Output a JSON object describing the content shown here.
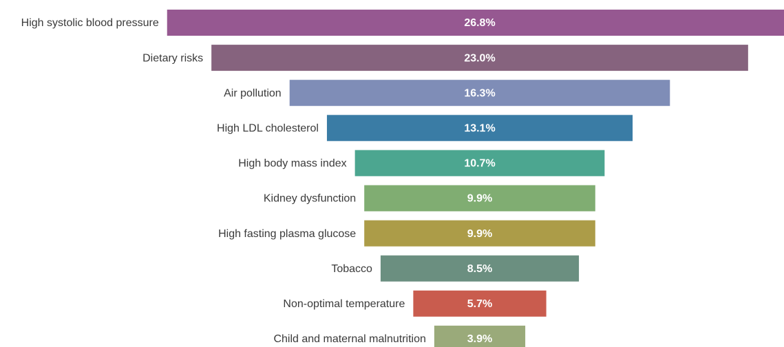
{
  "chart_data": {
    "type": "funnel-bar",
    "categories": [
      "High systolic blood pressure",
      "Dietary risks",
      "Air pollution",
      "High LDL cholesterol",
      "High body mass index",
      "Kidney dysfunction",
      "High fasting plasma glucose",
      "Tobacco",
      "Non-optimal temperature",
      "Child and maternal malnutrition"
    ],
    "values": [
      26.8,
      23.0,
      16.3,
      13.1,
      10.7,
      9.9,
      9.9,
      8.5,
      5.7,
      3.9
    ],
    "value_labels": [
      "26.8%",
      "23.0%",
      "16.3%",
      "13.1%",
      "10.7%",
      "9.9%",
      "9.9%",
      "8.5%",
      "5.7%",
      "3.9%"
    ],
    "colors": [
      "#965891",
      "#86637e",
      "#7f8db7",
      "#3a7ca5",
      "#4ca690",
      "#80ad72",
      "#ac9c48",
      "#6b8f80",
      "#c95c4e",
      "#9aaa7a"
    ]
  }
}
